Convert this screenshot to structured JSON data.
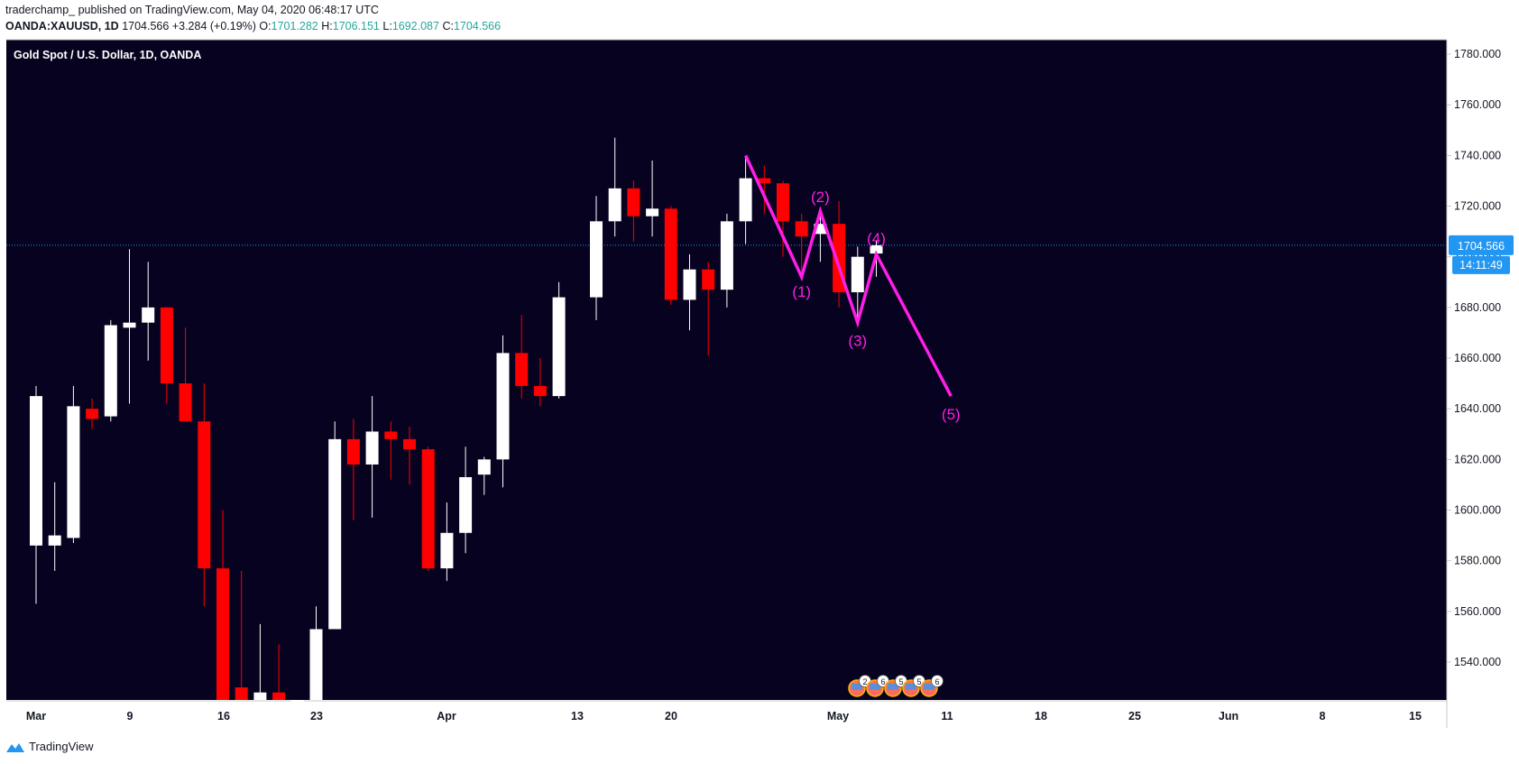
{
  "header": {
    "line1": "traderchamp_ published on TradingView.com, May 04, 2020 06:48:17 UTC",
    "symbol": "OANDA:XAUUSD, 1D",
    "last": "1704.566",
    "change": "+3.284 (+0.19%)",
    "o_label": "O:",
    "o_value": "1701.282",
    "h_label": "H:",
    "h_value": "1706.151",
    "l_label": "L:",
    "l_value": "1692.087",
    "c_label": "C:",
    "c_value": "1704.566"
  },
  "footer": {
    "brand": "TradingView"
  },
  "colors": {
    "background": "#07021f",
    "up": "#ffffff",
    "down": "#ff0000",
    "wave": "#ff1ee5",
    "price_line": "#2196f3",
    "axis_text": "#d1d4dc"
  },
  "chart_data": {
    "type": "candlestick",
    "title": "Gold Spot / U.S. Dollar, 1D, OANDA",
    "ylim": [
      1522,
      1786
    ],
    "y_ticks": [
      1540,
      1560,
      1580,
      1600,
      1620,
      1640,
      1660,
      1680,
      1700,
      1720,
      1740,
      1760,
      1780
    ],
    "y_tick_labels": [
      "1540.000",
      "1560.000",
      "1580.000",
      "1600.000",
      "1620.000",
      "1640.000",
      "1660.000",
      "1680.000",
      "1700.000",
      "1720.000",
      "1740.000",
      "1760.000",
      "1780.000"
    ],
    "x_labels": [
      "Mar",
      "9",
      "16",
      "23",
      "Apr",
      "13",
      "20",
      "May",
      "11",
      "18",
      "25",
      "Jun",
      "8",
      "15"
    ],
    "last_price": {
      "value": 1704.566,
      "label": "1704.566",
      "countdown": "14:11:49"
    },
    "candles": [
      {
        "date": "2020-03-02",
        "o": 1586,
        "h": 1649,
        "l": 1563,
        "c": 1645
      },
      {
        "date": "2020-03-03",
        "o": 1586,
        "h": 1611,
        "l": 1576,
        "c": 1590
      },
      {
        "date": "2020-03-04",
        "o": 1589,
        "h": 1649,
        "l": 1587,
        "c": 1641
      },
      {
        "date": "2020-03-05",
        "o": 1640,
        "h": 1644,
        "l": 1632,
        "c": 1636
      },
      {
        "date": "2020-03-06",
        "o": 1637,
        "h": 1675,
        "l": 1635,
        "c": 1673
      },
      {
        "date": "2020-03-09",
        "o": 1672,
        "h": 1703,
        "l": 1642,
        "c": 1674
      },
      {
        "date": "2020-03-10",
        "o": 1674,
        "h": 1698,
        "l": 1659,
        "c": 1680
      },
      {
        "date": "2020-03-11",
        "o": 1680,
        "h": 1680,
        "l": 1642,
        "c": 1650
      },
      {
        "date": "2020-03-12",
        "o": 1650,
        "h": 1672,
        "l": 1635,
        "c": 1635
      },
      {
        "date": "2020-03-13",
        "o": 1635,
        "h": 1650,
        "l": 1562,
        "c": 1577
      },
      {
        "date": "2020-03-16",
        "o": 1577,
        "h": 1600,
        "l": 1503,
        "c": 1519
      },
      {
        "date": "2020-03-17",
        "o": 1530,
        "h": 1576,
        "l": 1470,
        "c": 1515
      },
      {
        "date": "2020-03-18",
        "o": 1515,
        "h": 1555,
        "l": 1510,
        "c": 1528
      },
      {
        "date": "2020-03-19",
        "o": 1528,
        "h": 1547,
        "l": 1495,
        "c": 1525
      },
      {
        "date": "2020-03-20",
        "o": 1485,
        "h": 1520,
        "l": 1470,
        "c": 1500
      },
      {
        "date": "2020-03-23",
        "o": 1523,
        "h": 1562,
        "l": 1482,
        "c": 1553
      },
      {
        "date": "2020-03-24",
        "o": 1553,
        "h": 1635,
        "l": 1553,
        "c": 1628
      },
      {
        "date": "2020-03-25",
        "o": 1628,
        "h": 1636,
        "l": 1596,
        "c": 1618
      },
      {
        "date": "2020-03-26",
        "o": 1618,
        "h": 1645,
        "l": 1597,
        "c": 1631
      },
      {
        "date": "2020-03-27",
        "o": 1631,
        "h": 1635,
        "l": 1612,
        "c": 1628
      },
      {
        "date": "2020-03-30",
        "o": 1628,
        "h": 1633,
        "l": 1610,
        "c": 1624
      },
      {
        "date": "2020-03-31",
        "o": 1624,
        "h": 1625,
        "l": 1576,
        "c": 1577
      },
      {
        "date": "2020-04-01",
        "o": 1577,
        "h": 1603,
        "l": 1572,
        "c": 1591
      },
      {
        "date": "2020-04-02",
        "o": 1591,
        "h": 1625,
        "l": 1583,
        "c": 1613
      },
      {
        "date": "2020-04-03",
        "o": 1614,
        "h": 1621,
        "l": 1606,
        "c": 1620
      },
      {
        "date": "2020-04-06",
        "o": 1620,
        "h": 1669,
        "l": 1609,
        "c": 1662
      },
      {
        "date": "2020-04-07",
        "o": 1662,
        "h": 1677,
        "l": 1644,
        "c": 1649
      },
      {
        "date": "2020-04-08",
        "o": 1649,
        "h": 1660,
        "l": 1641,
        "c": 1645
      },
      {
        "date": "2020-04-09",
        "o": 1645,
        "h": 1690,
        "l": 1644,
        "c": 1684
      },
      {
        "date": "2020-04-13",
        "o": 1684,
        "h": 1724,
        "l": 1675,
        "c": 1714
      },
      {
        "date": "2020-04-14",
        "o": 1714,
        "h": 1747,
        "l": 1708,
        "c": 1727
      },
      {
        "date": "2020-04-15",
        "o": 1727,
        "h": 1730,
        "l": 1706,
        "c": 1716
      },
      {
        "date": "2020-04-16",
        "o": 1716,
        "h": 1738,
        "l": 1708,
        "c": 1719
      },
      {
        "date": "2020-04-17",
        "o": 1719,
        "h": 1720,
        "l": 1681,
        "c": 1683
      },
      {
        "date": "2020-04-20",
        "o": 1683,
        "h": 1701,
        "l": 1671,
        "c": 1695
      },
      {
        "date": "2020-04-21",
        "o": 1695,
        "h": 1698,
        "l": 1661,
        "c": 1687
      },
      {
        "date": "2020-04-22",
        "o": 1687,
        "h": 1717,
        "l": 1680,
        "c": 1714
      },
      {
        "date": "2020-04-23",
        "o": 1714,
        "h": 1739,
        "l": 1705,
        "c": 1731
      },
      {
        "date": "2020-04-24",
        "o": 1731,
        "h": 1736,
        "l": 1717,
        "c": 1729
      },
      {
        "date": "2020-04-27",
        "o": 1729,
        "h": 1730,
        "l": 1700,
        "c": 1714
      },
      {
        "date": "2020-04-28",
        "o": 1714,
        "h": 1717,
        "l": 1692,
        "c": 1708
      },
      {
        "date": "2020-04-29",
        "o": 1709,
        "h": 1719,
        "l": 1698,
        "c": 1713
      },
      {
        "date": "2020-04-30",
        "o": 1713,
        "h": 1722,
        "l": 1680,
        "c": 1686
      },
      {
        "date": "2020-05-01",
        "o": 1686,
        "h": 1704,
        "l": 1674,
        "c": 1700
      },
      {
        "date": "2020-05-04",
        "o": 1701.282,
        "h": 1706.151,
        "l": 1692.087,
        "c": 1704.566
      }
    ],
    "wave_points": [
      {
        "date": "2020-04-23",
        "value": 1740,
        "label": ""
      },
      {
        "date": "2020-04-28",
        "value": 1692,
        "label": "(1)"
      },
      {
        "date": "2020-04-29",
        "value": 1718,
        "label": "(2)"
      },
      {
        "date": "2020-05-01",
        "value": 1674,
        "label": "(3)"
      },
      {
        "date": "2020-05-04",
        "value": 1701,
        "label": "(4)"
      },
      {
        "date": "2020-05-08",
        "value": 1645,
        "label": "(5)"
      }
    ],
    "event_markers": [
      "2",
      "6",
      "5",
      "5",
      "6"
    ]
  }
}
